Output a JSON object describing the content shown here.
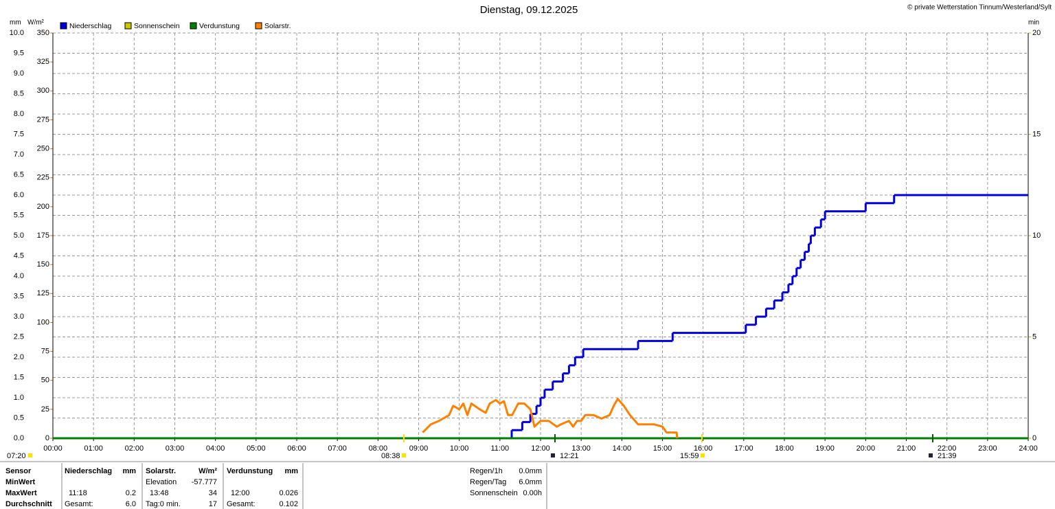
{
  "chart_data": {
    "type": "line",
    "title": "Dienstag, 09.12.2025",
    "copyright": "© private Wetterstation Tinnum/Westerland/Sylt",
    "y_unit": "mm",
    "y2_unit": "W/m²",
    "y3_unit": "min",
    "xlim": [
      0,
      24
    ],
    "xticks": [
      {
        "value": 0,
        "label": "00:00"
      },
      {
        "value": 1,
        "label": "01:00"
      },
      {
        "value": 2,
        "label": "02:00"
      },
      {
        "value": 3,
        "label": "03:00"
      },
      {
        "value": 4,
        "label": "04:00"
      },
      {
        "value": 5,
        "label": "05:00"
      },
      {
        "value": 6,
        "label": "06:00"
      },
      {
        "value": 7,
        "label": "07:00"
      },
      {
        "value": 8,
        "label": "08:00"
      },
      {
        "value": 9,
        "label": "09:00"
      },
      {
        "value": 10,
        "label": "10:00"
      },
      {
        "value": 11,
        "label": "11:00"
      },
      {
        "value": 12,
        "label": "12:00"
      },
      {
        "value": 13,
        "label": "13:00"
      },
      {
        "value": 14,
        "label": "14:00"
      },
      {
        "value": 15,
        "label": "15:00"
      },
      {
        "value": 16,
        "label": "16:00"
      },
      {
        "value": 17,
        "label": "17:00"
      },
      {
        "value": 18,
        "label": "18:00"
      },
      {
        "value": 19,
        "label": "19:00"
      },
      {
        "value": 20,
        "label": "20:00"
      },
      {
        "value": 21,
        "label": "21:00"
      },
      {
        "value": 22,
        "label": "22:00"
      },
      {
        "value": 23,
        "label": "23:00"
      },
      {
        "value": 24,
        "label": "24:00"
      }
    ],
    "ylim": [
      0,
      10
    ],
    "yticks": [
      {
        "value": 0,
        "label": "0.0"
      },
      0.5,
      {
        "value": 1,
        "label": "1.0"
      },
      1.5,
      {
        "value": 2,
        "label": "2.0"
      },
      2.5,
      {
        "value": 3,
        "label": "3.0"
      },
      3.5,
      {
        "value": 4,
        "label": "4.0"
      },
      4.5,
      {
        "value": 5,
        "label": "5.0"
      },
      5.5,
      {
        "value": 6,
        "label": "6.0"
      },
      6.5,
      {
        "value": 7,
        "label": "7.0"
      },
      7.5,
      {
        "value": 8,
        "label": "8.0"
      },
      8.5,
      {
        "value": 9,
        "label": "9.0"
      },
      9.5,
      {
        "value": 10,
        "label": "10.0"
      }
    ],
    "y2lim": [
      0,
      350
    ],
    "y2ticks": [
      0,
      25,
      50,
      75,
      100,
      125,
      150,
      175,
      200,
      225,
      250,
      275,
      300,
      325,
      350
    ],
    "y3lim": [
      0,
      20
    ],
    "y3ticks": [
      0,
      5,
      10,
      15,
      20
    ],
    "grid": true,
    "series": [
      {
        "name": "Niederschlag",
        "color": "#0000dd",
        "axis": "y",
        "step": true,
        "x": [
          0,
          11.29,
          11.55,
          11.75,
          11.9,
          12.0,
          12.1,
          12.3,
          12.55,
          12.7,
          12.85,
          13.05,
          14.4,
          15.25,
          17.05,
          17.3,
          17.55,
          17.75,
          17.95,
          18.1,
          18.2,
          18.3,
          18.4,
          18.5,
          18.6,
          18.65,
          18.75,
          18.9,
          19.0,
          20.0,
          20.7
        ],
        "values": [
          0,
          0.2,
          0.4,
          0.6,
          0.8,
          1.0,
          1.2,
          1.4,
          1.6,
          1.8,
          2.0,
          2.2,
          2.4,
          2.6,
          2.8,
          3.0,
          3.2,
          3.4,
          3.6,
          3.8,
          4.0,
          4.2,
          4.4,
          4.6,
          4.8,
          5.0,
          5.2,
          5.4,
          5.6,
          5.8,
          6.0
        ]
      },
      {
        "name": "Sonnenschein",
        "color": "#c8c800",
        "axis": "y3"
      },
      {
        "name": "Verdunstung",
        "color": "#008000",
        "axis": "y",
        "x": [
          0,
          24
        ],
        "values": [
          0,
          0
        ]
      },
      {
        "name": "Solarstr.",
        "color": "#ff8000",
        "axis": "y2",
        "x": [
          9.1,
          9.3,
          9.5,
          9.75,
          9.85,
          10.0,
          10.1,
          10.2,
          10.3,
          10.5,
          10.65,
          10.75,
          10.9,
          11.0,
          11.1,
          11.2,
          11.3,
          11.45,
          11.6,
          11.75,
          11.85,
          12.0,
          12.2,
          12.4,
          12.5,
          12.7,
          12.8,
          12.9,
          13.0,
          13.1,
          13.3,
          13.5,
          13.7,
          13.8,
          13.9,
          14.05,
          14.2,
          14.4,
          14.8,
          15.0,
          15.1,
          15.35,
          15.36
        ],
        "values": [
          5,
          12,
          15,
          20,
          28,
          25,
          30,
          20,
          30,
          25,
          22,
          30,
          33,
          30,
          32,
          20,
          20,
          30,
          30,
          25,
          10,
          15,
          15,
          10,
          12,
          15,
          10,
          15,
          15,
          20,
          20,
          17,
          20,
          28,
          34,
          28,
          20,
          12,
          12,
          10,
          5,
          5,
          0
        ]
      }
    ],
    "events": [
      "07:20",
      "08:38",
      "12:21",
      "15:59",
      "21:39"
    ]
  },
  "stats": {
    "rows": [
      [
        "Sensor",
        "Niederschlag",
        "mm",
        "Solarstr.",
        "W/m²",
        "Verdunstung",
        "mm"
      ],
      [
        "MinWert",
        null,
        null,
        "Elevation",
        "-57.777",
        null,
        null
      ],
      [
        "MaxWert",
        "11:18",
        "0.2",
        "13:48",
        "34",
        "12:00",
        "0.026"
      ],
      [
        "Durchschnitt",
        "Gesamt:",
        "6.0",
        "Tag:0 min.",
        "17",
        "Gesamt:",
        "0.102"
      ]
    ],
    "summary": [
      [
        "Regen/1h",
        "0.0mm"
      ],
      [
        "Regen/Tag",
        "6.0mm"
      ],
      [
        "Sonnenschein",
        "0.00h"
      ]
    ]
  }
}
